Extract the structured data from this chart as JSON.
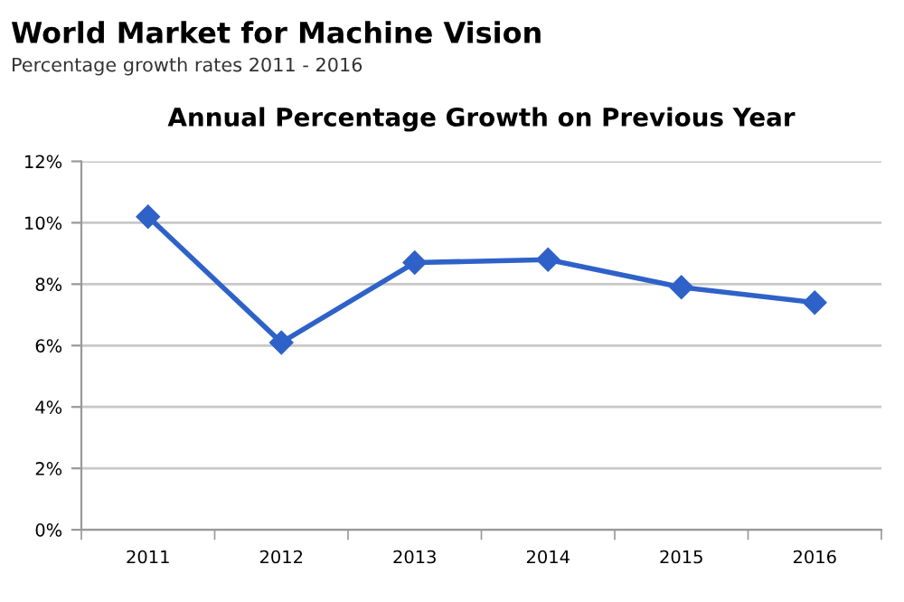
{
  "chart_data": {
    "type": "line",
    "title": "Annual Percentage Growth on Previous Year",
    "annotations": [
      "World Market for Machine Vision",
      "Percentage growth rates 2011 - 2016"
    ],
    "categories": [
      "2011",
      "2012",
      "2013",
      "2014",
      "2015",
      "2016"
    ],
    "series": [
      {
        "color": "#2f62c8",
        "values": [
          10.2,
          6.1,
          8.7,
          8.8,
          7.9,
          7.4
        ]
      }
    ],
    "ylim": [
      0,
      12
    ],
    "yticks": [
      {
        "value": 0,
        "label": "0%"
      },
      {
        "value": 2,
        "label": "2%"
      },
      {
        "value": 4,
        "label": "4%"
      },
      {
        "value": 6,
        "label": "6%"
      },
      {
        "value": 8,
        "label": "8%"
      },
      {
        "value": 10,
        "label": "10%"
      },
      {
        "value": 12,
        "label": "12%"
      }
    ],
    "grid": "y",
    "marker": "diamond",
    "line_style": "solid"
  }
}
